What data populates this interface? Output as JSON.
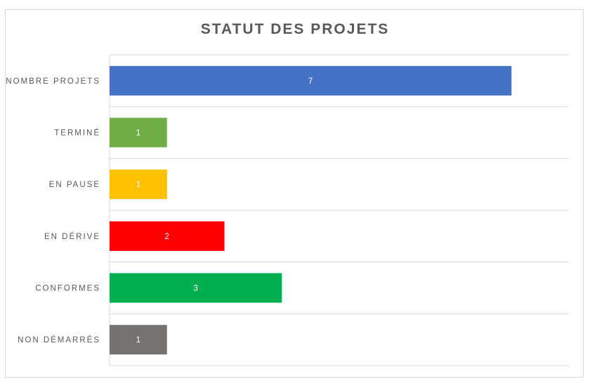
{
  "chart_data": {
    "type": "bar",
    "orientation": "horizontal",
    "title": "STATUT DES PROJETS",
    "xlabel": "",
    "ylabel": "",
    "categories": [
      "NOMBRE PROJETS",
      "TERMINÉ",
      "EN PAUSE",
      "EN DÉRIVE",
      "CONFORMES",
      "NON DÉMARRÉS"
    ],
    "values": [
      7,
      1,
      1,
      2,
      3,
      1
    ],
    "colors": [
      "#4472C4",
      "#70AD47",
      "#FFC000",
      "#FF0000",
      "#00B050",
      "#767171"
    ],
    "xlim": [
      0,
      8
    ],
    "grid": true,
    "legend": "none",
    "data_labels": true
  }
}
